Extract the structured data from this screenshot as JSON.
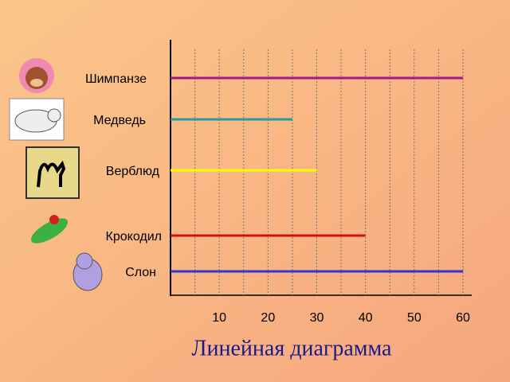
{
  "chart_data": {
    "type": "hbar",
    "title": "Линейная диаграмма",
    "categories": [
      "Шимпанзе",
      "Медведь",
      "Верблюд",
      "Крокодил",
      "Слон"
    ],
    "values": [
      60,
      25,
      30,
      40,
      60
    ],
    "colors": [
      "#a01a8c",
      "#2a9a9a",
      "#ffff00",
      "#d01010",
      "#3434d0"
    ],
    "xlim": [
      0,
      60
    ],
    "xticks": [
      10,
      20,
      30,
      40,
      50,
      60
    ],
    "grid_lines": [
      5,
      10,
      15,
      20,
      25,
      30,
      35,
      40,
      45,
      50,
      55,
      60
    ],
    "grid": true
  }
}
